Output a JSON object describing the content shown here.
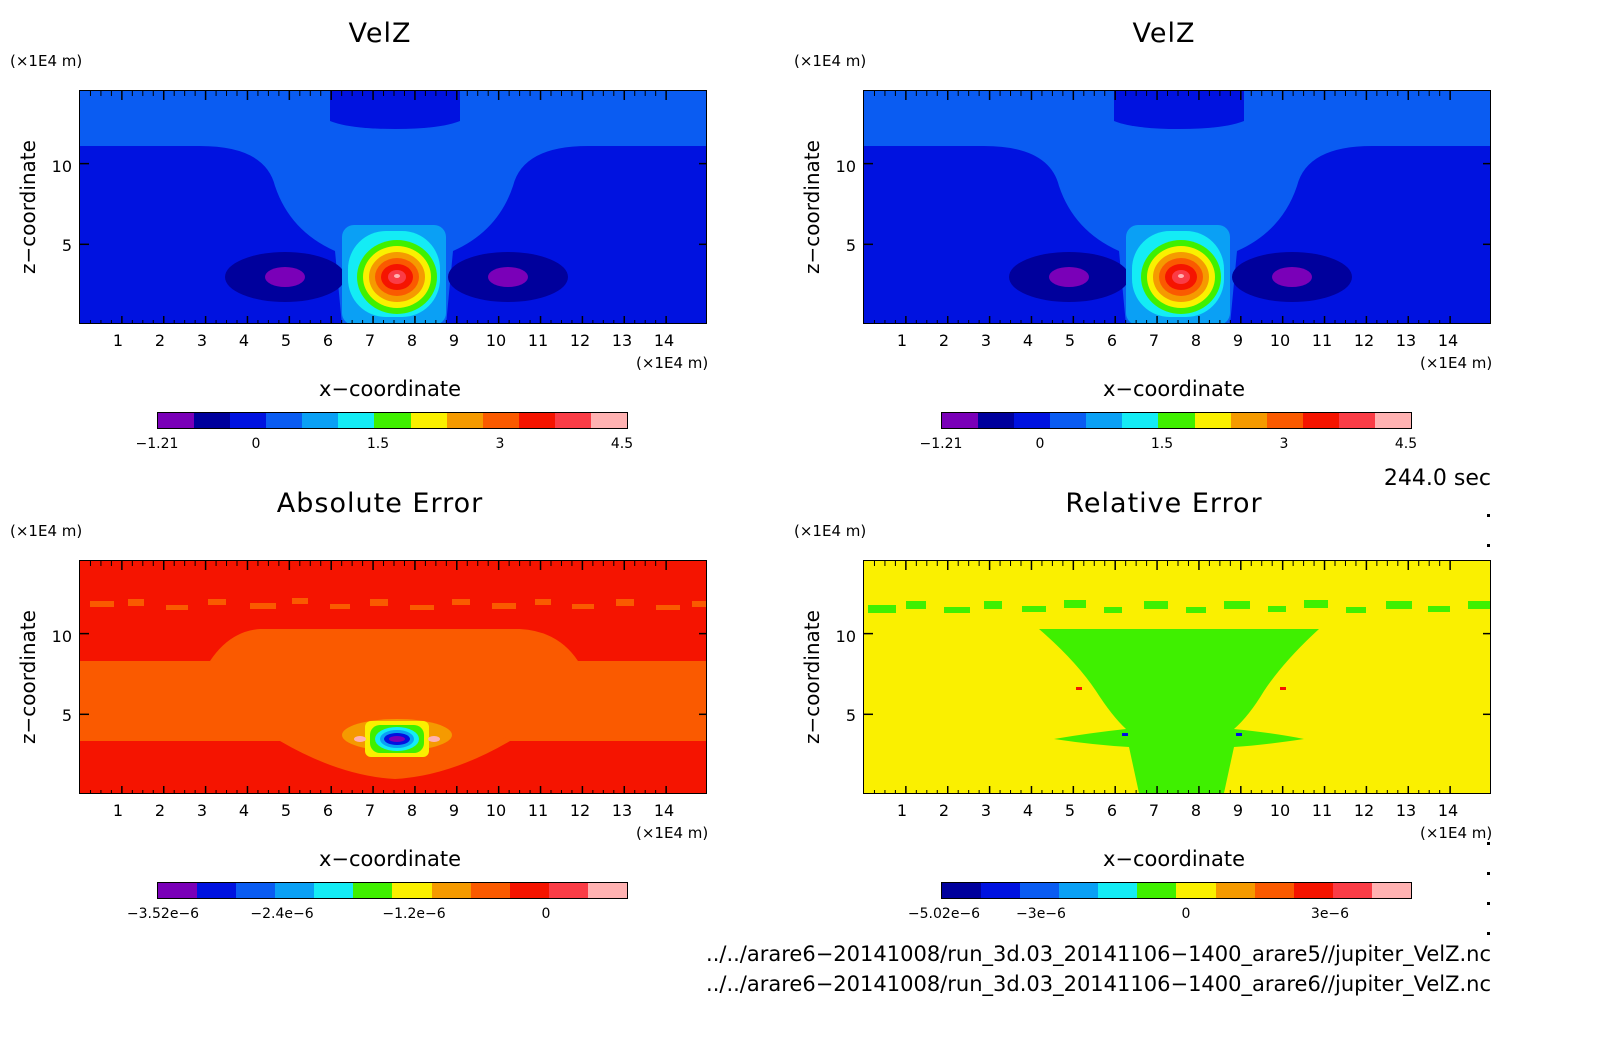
{
  "panels": [
    {
      "title": "VelZ",
      "unit_y": "(×1E4 m)",
      "unit_x": "(×1E4 m)",
      "ylabel": "z−coordinate",
      "xlabel": "x−coordinate",
      "yticks": [
        "5",
        "10"
      ],
      "xticks": [
        "1",
        "2",
        "3",
        "4",
        "5",
        "6",
        "7",
        "8",
        "9",
        "10",
        "11",
        "12",
        "13",
        "14"
      ],
      "colorbar_labels": [
        "−1.21",
        "0",
        "1.5",
        "3",
        "4.5"
      ]
    },
    {
      "title": "VelZ",
      "unit_y": "(×1E4 m)",
      "unit_x": "(×1E4 m)",
      "ylabel": "z−coordinate",
      "xlabel": "x−coordinate",
      "yticks": [
        "5",
        "10"
      ],
      "xticks": [
        "1",
        "2",
        "3",
        "4",
        "5",
        "6",
        "7",
        "8",
        "9",
        "10",
        "11",
        "12",
        "13",
        "14"
      ],
      "colorbar_labels": [
        "−1.21",
        "0",
        "1.5",
        "3",
        "4.5"
      ]
    },
    {
      "title": "Absolute Error",
      "unit_y": "(×1E4 m)",
      "unit_x": "(×1E4 m)",
      "ylabel": "z−coordinate",
      "xlabel": "x−coordinate",
      "yticks": [
        "5",
        "10"
      ],
      "xticks": [
        "1",
        "2",
        "3",
        "4",
        "5",
        "6",
        "7",
        "8",
        "9",
        "10",
        "11",
        "12",
        "13",
        "14"
      ],
      "colorbar_labels": [
        "−3.52e−6",
        "−2.4e−6",
        "−1.2e−6",
        "0"
      ]
    },
    {
      "title": "Relative Error",
      "unit_y": "(×1E4 m)",
      "unit_x": "(×1E4 m)",
      "ylabel": "z−coordinate",
      "xlabel": "x−coordinate",
      "yticks": [
        "5",
        "10"
      ],
      "xticks": [
        "1",
        "2",
        "3",
        "4",
        "5",
        "6",
        "7",
        "8",
        "9",
        "10",
        "11",
        "12",
        "13",
        "14"
      ],
      "colorbar_labels": [
        "−5.02e−6",
        "−3e−6",
        "0",
        "3e−6"
      ]
    }
  ],
  "time_label": "244.0 sec",
  "files": [
    "../../arare6−20141008/run_3d.03_20141106−1400_arare5//jupiter_VelZ.nc",
    "../../arare6−20141008/run_3d.03_20141106−1400_arare6//jupiter_VelZ.nc"
  ],
  "colors": {
    "velz_scale": [
      "#7a00b8",
      "#00009c",
      "#0012e0",
      "#0a5cf2",
      "#0aa0f5",
      "#14ecf5",
      "#3ff000",
      "#faf000",
      "#f59a00",
      "#fa5a00",
      "#f51400",
      "#fa3c46",
      "#ffb2b2"
    ],
    "abs_scale": [
      "#7a00b8",
      "#0012e0",
      "#0a5cf2",
      "#0aa0f5",
      "#14ecf5",
      "#3ff000",
      "#faf000",
      "#f59a00",
      "#fa5a00",
      "#f51400",
      "#fa3c46",
      "#ffb2b2"
    ],
    "rel_scale": [
      "#00009c",
      "#0012e0",
      "#0a5cf2",
      "#0aa0f5",
      "#14ecf5",
      "#3ff000",
      "#faf000",
      "#f59a00",
      "#fa5a00",
      "#f51400",
      "#fa3c46",
      "#ffb2b2"
    ]
  },
  "chart_data": [
    {
      "type": "heatmap",
      "title": "VelZ",
      "xlabel": "x−coordinate",
      "ylabel": "z−coordinate",
      "xlim": [
        0,
        15
      ],
      "ylim": [
        0,
        14.5
      ],
      "x_unit": "(×1E4 m)",
      "y_unit": "(×1E4 m)",
      "colorbar_range": [
        -1.21,
        4.5
      ],
      "features": [
        {
          "kind": "updraft-core",
          "x": 7.5,
          "z": 3,
          "value": 4.5
        },
        {
          "kind": "downdraft",
          "x": 5.2,
          "z": 3,
          "value": -1.21
        },
        {
          "kind": "downdraft",
          "x": 9.8,
          "z": 3,
          "value": -1.21
        }
      ]
    },
    {
      "type": "heatmap",
      "title": "VelZ",
      "xlabel": "x−coordinate",
      "ylabel": "z−coordinate",
      "xlim": [
        0,
        15
      ],
      "ylim": [
        0,
        14.5
      ],
      "x_unit": "(×1E4 m)",
      "y_unit": "(×1E4 m)",
      "colorbar_range": [
        -1.21,
        4.5
      ],
      "features": [
        {
          "kind": "updraft-core",
          "x": 7.5,
          "z": 3,
          "value": 4.5
        },
        {
          "kind": "downdraft",
          "x": 5.2,
          "z": 3,
          "value": -1.21
        },
        {
          "kind": "downdraft",
          "x": 9.8,
          "z": 3,
          "value": -1.21
        }
      ]
    },
    {
      "type": "heatmap",
      "title": "Absolute Error",
      "xlabel": "x−coordinate",
      "ylabel": "z−coordinate",
      "xlim": [
        0,
        15
      ],
      "ylim": [
        0,
        14.5
      ],
      "x_unit": "(×1E4 m)",
      "y_unit": "(×1E4 m)",
      "colorbar_range": [
        -3.52e-06,
        6e-07
      ],
      "features": [
        {
          "kind": "minimum",
          "x": 7.5,
          "z": 3.5,
          "value": -3.52e-06
        }
      ]
    },
    {
      "type": "heatmap",
      "title": "Relative Error",
      "xlabel": "x−coordinate",
      "ylabel": "z−coordinate",
      "xlim": [
        0,
        15
      ],
      "ylim": [
        0,
        14.5
      ],
      "x_unit": "(×1E4 m)",
      "y_unit": "(×1E4 m)",
      "colorbar_range": [
        -5.02e-06,
        5e-06
      ],
      "features": [
        {
          "kind": "near-zero-region",
          "x": 7.5,
          "z": 6,
          "value": 0
        }
      ]
    }
  ]
}
